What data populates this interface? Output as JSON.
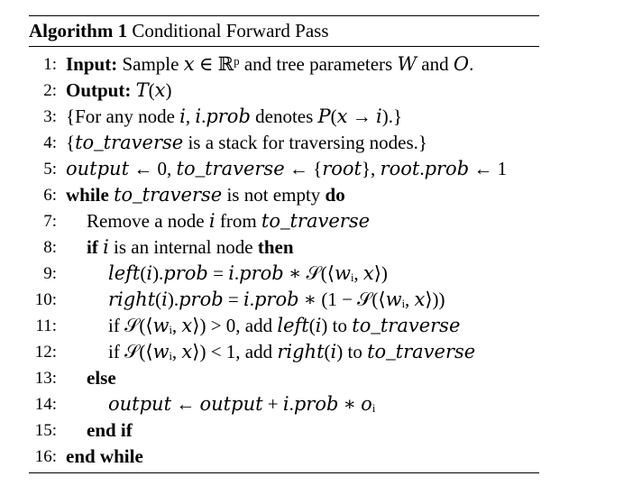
{
  "algorithm": {
    "caption_label": "Algorithm 1",
    "caption_title": "Conditional Forward Pass",
    "lines": [
      {
        "num": "1:",
        "kw": "Input:",
        "text": "Sample 𝑥 ∈ ℝᵖ and tree parameters 𝑊 and 𝑂."
      },
      {
        "num": "2:",
        "kw": "Output:",
        "text": "𝑇(𝑥)"
      },
      {
        "num": "3:",
        "text": "{For any node 𝑖, 𝑖.𝑝𝑟𝑜𝑏 denotes 𝑃(𝑥 → 𝑖).}"
      },
      {
        "num": "4:",
        "text": "{𝑡𝑜_𝑡𝑟𝑎𝑣𝑒𝑟𝑠𝑒 is a stack for traversing nodes.}"
      },
      {
        "num": "5:",
        "text": "𝑜𝑢𝑡𝑝𝑢𝑡 ← 0, 𝑡𝑜_𝑡𝑟𝑎𝑣𝑒𝑟𝑠𝑒 ← {𝑟𝑜𝑜𝑡}, 𝑟𝑜𝑜𝑡.𝑝𝑟𝑜𝑏 ← 1"
      },
      {
        "num": "6:",
        "kw": "while",
        "text": "𝑡𝑜_𝑡𝑟𝑎𝑣𝑒𝑟𝑠𝑒 is not empty",
        "kw_end": "do"
      },
      {
        "num": "7:",
        "text": "Remove a node 𝑖 from 𝑡𝑜_𝑡𝑟𝑎𝑣𝑒𝑟𝑠𝑒"
      },
      {
        "num": "8:",
        "kw": "if",
        "text": "𝑖 is an internal node",
        "kw_end": "then"
      },
      {
        "num": "9:",
        "text": "𝑙𝑒𝑓𝑡(𝑖).𝑝𝑟𝑜𝑏 = 𝑖.𝑝𝑟𝑜𝑏 ∗ 𝒮(⟨𝑤ᵢ, 𝑥⟩)"
      },
      {
        "num": "10:",
        "text": "𝑟𝑖𝑔ℎ𝑡(𝑖).𝑝𝑟𝑜𝑏 = 𝑖.𝑝𝑟𝑜𝑏 ∗ (1 − 𝒮(⟨𝑤ᵢ, 𝑥⟩))"
      },
      {
        "num": "11:",
        "text": "if 𝒮(⟨𝑤ᵢ, 𝑥⟩) > 0, add 𝑙𝑒𝑓𝑡(𝑖) to 𝑡𝑜_𝑡𝑟𝑎𝑣𝑒𝑟𝑠𝑒"
      },
      {
        "num": "12:",
        "text": "if 𝒮(⟨𝑤ᵢ, 𝑥⟩) < 1, add 𝑟𝑖𝑔ℎ𝑡(𝑖) to 𝑡𝑜_𝑡𝑟𝑎𝑣𝑒𝑟𝑠𝑒"
      },
      {
        "num": "13:",
        "kw": "else"
      },
      {
        "num": "14:",
        "text": "𝑜𝑢𝑡𝑝𝑢𝑡 ← 𝑜𝑢𝑡𝑝𝑢𝑡 + 𝑖.𝑝𝑟𝑜𝑏 ∗ 𝑜ᵢ"
      },
      {
        "num": "15:",
        "kw": "end if"
      },
      {
        "num": "16:",
        "kw": "end while"
      }
    ]
  }
}
